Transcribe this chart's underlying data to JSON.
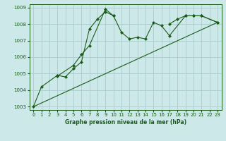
{
  "title": "Graphe pression niveau de la mer (hPa)",
  "background_color": "#cde8e8",
  "grid_color": "#aacccc",
  "line_color": "#1a5c1a",
  "marker_color": "#1a5c1a",
  "xlim": [
    -0.5,
    23.5
  ],
  "ylim": [
    1002.8,
    1009.2
  ],
  "xticks": [
    0,
    1,
    2,
    3,
    4,
    5,
    6,
    7,
    8,
    9,
    10,
    11,
    12,
    13,
    14,
    15,
    16,
    17,
    18,
    19,
    20,
    21,
    22,
    23
  ],
  "yticks": [
    1003,
    1004,
    1005,
    1006,
    1007,
    1008,
    1009
  ],
  "series0": [
    1003.0,
    1004.2,
    null,
    1004.9,
    1004.8,
    1005.3,
    1005.7,
    1007.7,
    1008.3,
    1008.75,
    1008.5,
    1007.5,
    1007.1,
    1007.2,
    1007.1,
    1008.1,
    1007.9,
    1007.3,
    null,
    1008.5,
    1008.5,
    1008.5,
    null,
    1008.1
  ],
  "series1": [
    null,
    null,
    null,
    1004.85,
    null,
    1005.5,
    1006.15,
    1006.7,
    null,
    1008.9,
    1008.5,
    null,
    null,
    null,
    null,
    null,
    null,
    null,
    null,
    null,
    null,
    null,
    null,
    null
  ],
  "series2_x": [
    0,
    23
  ],
  "series2_y": [
    1003.0,
    1008.1
  ],
  "series3": [
    null,
    null,
    null,
    null,
    null,
    null,
    null,
    null,
    null,
    null,
    null,
    null,
    null,
    null,
    null,
    null,
    null,
    1008.0,
    1008.3,
    1008.5,
    1008.5,
    1008.5,
    null,
    1008.1
  ]
}
